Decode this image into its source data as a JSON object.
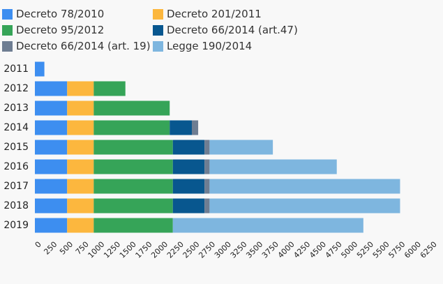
{
  "chart_data": {
    "type": "bar",
    "orientation": "horizontal",
    "stacked": true,
    "categories": [
      "2011",
      "2012",
      "2013",
      "2014",
      "2015",
      "2016",
      "2017",
      "2018",
      "2019"
    ],
    "series": [
      {
        "name": "Decreto 78/2010",
        "color": "#3d8ef0",
        "values": [
          150,
          510,
          510,
          510,
          510,
          510,
          510,
          510,
          510
        ]
      },
      {
        "name": "Decreto 201/2011",
        "color": "#fcb73e",
        "values": [
          0,
          420,
          420,
          420,
          420,
          420,
          420,
          420,
          420
        ]
      },
      {
        "name": "Decreto 95/2012",
        "color": "#36a458",
        "values": [
          0,
          500,
          1200,
          1200,
          1250,
          1250,
          1250,
          1250,
          1250
        ]
      },
      {
        "name": "Decreto 66/2014 (art.47)",
        "color": "#08578f",
        "values": [
          0,
          0,
          0,
          350,
          500,
          500,
          500,
          500,
          0
        ]
      },
      {
        "name": "Decreto 66/2014 (art. 19)",
        "color": "#6e7d92",
        "values": [
          0,
          0,
          0,
          100,
          80,
          80,
          80,
          80,
          0
        ]
      },
      {
        "name": "Legge 190/2014",
        "color": "#7eb6df",
        "values": [
          0,
          0,
          0,
          0,
          1000,
          2010,
          3010,
          3010,
          3010
        ]
      }
    ],
    "xlim": [
      0,
      6250
    ],
    "xticks": [
      "0",
      "250",
      "500",
      "750",
      "1000",
      "1250",
      "1500",
      "1750",
      "2000",
      "2250",
      "2500",
      "2750",
      "3000",
      "3250",
      "3500",
      "3750",
      "4000",
      "4250",
      "4500",
      "4750",
      "5000",
      "5250",
      "5500",
      "5750",
      "6000",
      "6250"
    ],
    "grid": false,
    "legend_position": "top"
  }
}
